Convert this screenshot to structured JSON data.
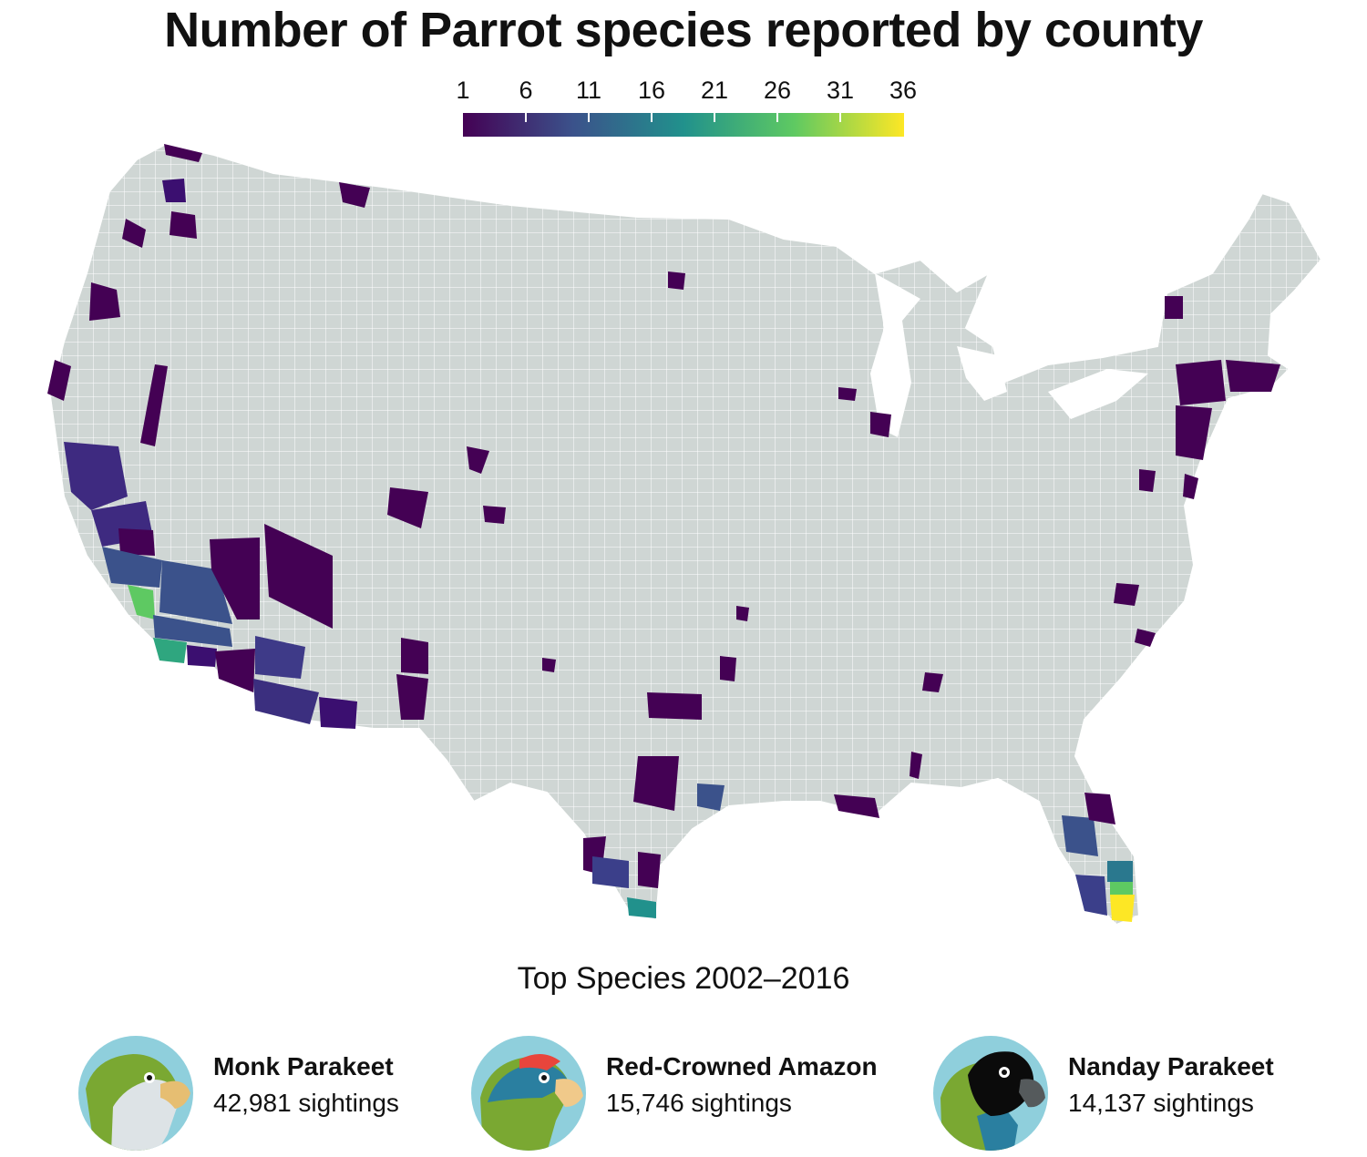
{
  "title": "Number of Parrot species reported by county",
  "legend": {
    "ticks": [
      "1",
      "6",
      "11",
      "16",
      "21",
      "26",
      "31",
      "36"
    ],
    "scale_min": 1,
    "scale_max": 36,
    "colors": [
      "#440154",
      "#3b528b",
      "#21918c",
      "#5ec962",
      "#fde725"
    ]
  },
  "map": {
    "base_color": "#cfd6d4",
    "border_color": "#ffffff",
    "highlighted_regions": [
      {
        "region": "Miami-Dade, FL",
        "species": 36
      },
      {
        "region": "Broward, FL",
        "species": 20
      },
      {
        "region": "Palm Beach, FL",
        "species": 13
      },
      {
        "region": "Los Angeles, CA",
        "species": 20
      },
      {
        "region": "Orange, CA",
        "species": 18
      },
      {
        "region": "Cameron, TX",
        "species": 15
      },
      {
        "region": "Hidalgo, TX",
        "species": 13
      },
      {
        "region": "San Bernardino, CA",
        "species": 8
      },
      {
        "region": "Riverside, CA",
        "species": 8
      },
      {
        "region": "Maricopa, AZ",
        "species": 7
      },
      {
        "region": "Harris, TX",
        "species": 7
      },
      {
        "region": "Kern, CA",
        "species": 5
      },
      {
        "region": "Pima, AZ",
        "species": 4
      }
    ]
  },
  "subtitle": "Top Species 2002–2016",
  "species": [
    {
      "name": "Monk Parakeet",
      "sightings": "42,981 sightings",
      "icon": "monk-parakeet-icon"
    },
    {
      "name": "Red-Crowned Amazon",
      "sightings": "15,746 sightings",
      "icon": "red-crowned-amazon-icon"
    },
    {
      "name": "Nanday Parakeet",
      "sightings": "14,137 sightings",
      "icon": "nanday-parakeet-icon"
    }
  ]
}
